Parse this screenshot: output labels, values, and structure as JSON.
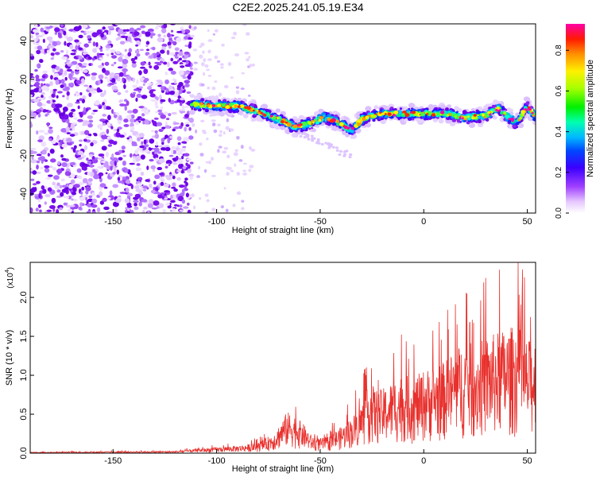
{
  "title": "C2E2.2025.241.05.19.E34",
  "colors": {
    "snr_line": "#e8312d",
    "axis": "#000000"
  },
  "chart_data": [
    {
      "type": "heatmap",
      "xlabel": "Height of straight line (km)",
      "ylabel": "Frequency (Hz)",
      "xlim": [
        -190,
        54
      ],
      "ylim": [
        -50,
        49
      ],
      "x_ticks": [
        -150,
        -100,
        -50,
        0,
        50
      ],
      "x_tick_labels": [
        "-150",
        "-100",
        "-50",
        "0",
        "50"
      ],
      "y_ticks": [
        -40,
        -20,
        0,
        20,
        40
      ],
      "y_tick_labels": [
        "-40",
        "-20",
        "0",
        "20",
        "40"
      ],
      "colorbar": {
        "label": "Normalized spectral amplitude",
        "range": [
          0,
          0.93
        ],
        "ticks": [
          0,
          0.2,
          0.4,
          0.6,
          0.8
        ],
        "tick_labels": [
          "0.0",
          "0.2",
          "0.4",
          "0.6",
          "0.8"
        ]
      },
      "noise_region_x": [
        -190,
        -112
      ],
      "signal_ridge": {
        "x": [
          -112,
          -100,
          -90,
          -80,
          -70,
          -62,
          -55,
          -48,
          -40,
          -35,
          -30,
          -25,
          -20,
          -10,
          0,
          10,
          20,
          30,
          36,
          40,
          45,
          50,
          54
        ],
        "y": [
          7,
          6,
          6,
          3,
          -1,
          -5,
          -3,
          0,
          -3,
          -7,
          -1,
          1,
          2,
          2,
          2,
          2,
          0,
          1,
          5,
          1,
          -3,
          6,
          0
        ]
      }
    },
    {
      "type": "line",
      "xlabel": "Height of straight line (km)",
      "ylabel": "SNR (10 * v/v)",
      "scale_label": "(x10",
      "scale_exp": "4",
      "xlim": [
        -190,
        54
      ],
      "ylim": [
        0,
        24500
      ],
      "x_ticks": [
        -150,
        -100,
        -50,
        0,
        50
      ],
      "x_tick_labels": [
        "-150",
        "-100",
        "-50",
        "0",
        "50"
      ],
      "y_ticks": [
        0,
        5000,
        10000,
        15000,
        20000
      ],
      "y_tick_labels": [
        "0.0",
        "0.5",
        "1.0",
        "1.5",
        "2.0"
      ],
      "envelope_x": [
        -190,
        -120,
        -110,
        -100,
        -90,
        -80,
        -72,
        -66,
        -62,
        -58,
        -54,
        -50,
        -46,
        -42,
        -38,
        -34,
        -30,
        -26,
        -22,
        -18,
        -14,
        -10,
        -5,
        0,
        5,
        10,
        15,
        20,
        25,
        30,
        35,
        40,
        45,
        50,
        54
      ],
      "envelope_y": [
        120,
        250,
        500,
        700,
        900,
        1200,
        2500,
        5000,
        4500,
        3500,
        2000,
        1800,
        2000,
        2800,
        3500,
        4500,
        6000,
        8500,
        7500,
        8000,
        9000,
        9500,
        9000,
        10000,
        10500,
        11000,
        12500,
        13500,
        13000,
        14000,
        14500,
        15000,
        15500,
        13500,
        14000
      ]
    }
  ]
}
